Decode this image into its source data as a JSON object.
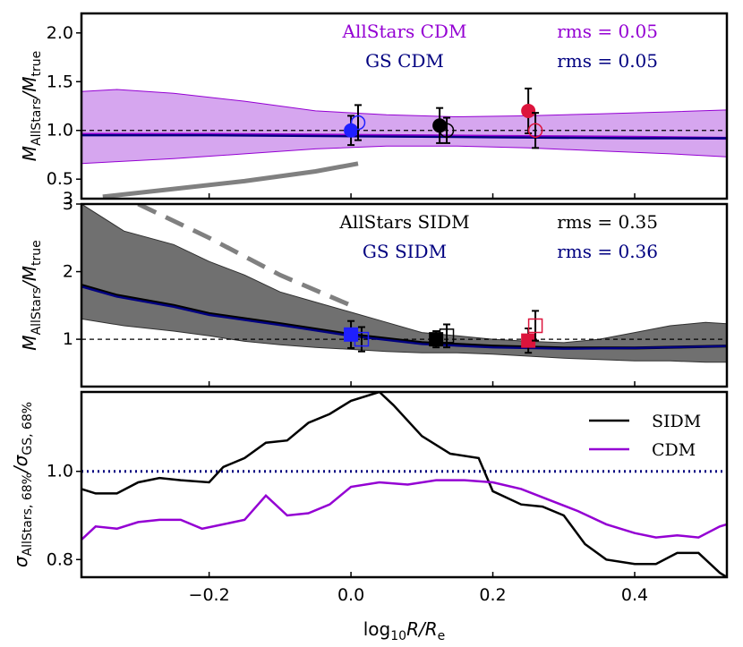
{
  "colors": {
    "cdm": "#9400d3",
    "cdm_band": "#d6a6ef",
    "gs": "#000080",
    "sidm": "#000000",
    "sidm_band": "#707070",
    "model_line": "#808080",
    "red": "#dc143c",
    "blue": "#1f1fff"
  },
  "chart_data": [
    {
      "id": "top",
      "type": "line",
      "ylabel_main": "M",
      "ylabel_sub1": "AllStars",
      "ylabel_mid": "/M",
      "ylabel_sub2": "true",
      "xlim": [
        -0.38,
        0.53
      ],
      "ylim": [
        0.3,
        2.2
      ],
      "yticks": [
        0.5,
        1.0,
        1.5,
        2.0
      ],
      "ytick_labels": [
        "0.5",
        "1.0",
        "1.5",
        "2.0"
      ],
      "ytick_extra_label": "3",
      "annotations": [
        {
          "text": "AllStars CDM",
          "color_key": "cdm"
        },
        {
          "text": "rms = 0.05",
          "color_key": "cdm"
        },
        {
          "text": "GS CDM",
          "color_key": "gs"
        },
        {
          "text": "rms = 0.05",
          "color_key": "gs"
        }
      ],
      "band": {
        "x": [
          -0.38,
          -0.33,
          -0.25,
          -0.15,
          -0.05,
          0.05,
          0.15,
          0.25,
          0.35,
          0.45,
          0.53
        ],
        "upper": [
          1.4,
          1.42,
          1.38,
          1.3,
          1.2,
          1.16,
          1.14,
          1.15,
          1.17,
          1.19,
          1.21
        ],
        "lower": [
          0.66,
          0.68,
          0.71,
          0.76,
          0.81,
          0.84,
          0.84,
          0.82,
          0.79,
          0.76,
          0.73
        ]
      },
      "series": [
        {
          "name": "AllStars CDM",
          "color_key": "cdm",
          "x": [
            -0.38,
            -0.2,
            0.0,
            0.2,
            0.4,
            0.53
          ],
          "y": [
            0.96,
            0.96,
            0.95,
            0.94,
            0.93,
            0.92
          ]
        },
        {
          "name": "GS CDM",
          "color_key": "gs",
          "x": [
            -0.38,
            -0.2,
            0.0,
            0.2,
            0.4,
            0.53
          ],
          "y": [
            0.95,
            0.95,
            0.94,
            0.93,
            0.92,
            0.92
          ]
        }
      ],
      "model_curve": {
        "x": [
          -0.35,
          -0.25,
          -0.15,
          -0.05,
          0.01
        ],
        "y": [
          0.32,
          0.4,
          0.48,
          0.58,
          0.66
        ],
        "dashed": false
      },
      "reference_y": 1.0,
      "points": [
        {
          "x": 0.0,
          "y": 1.0,
          "err": 0.15,
          "color_key": "blue",
          "marker": "circle",
          "filled": true
        },
        {
          "x": 0.01,
          "y": 1.08,
          "err": 0.18,
          "color_key": "blue",
          "marker": "circle",
          "filled": false
        },
        {
          "x": 0.125,
          "y": 1.05,
          "err": 0.18,
          "color_key": "sidm",
          "marker": "circle",
          "filled": true
        },
        {
          "x": 0.135,
          "y": 1.0,
          "err": 0.13,
          "color_key": "sidm",
          "marker": "circle",
          "filled": false
        },
        {
          "x": 0.25,
          "y": 1.2,
          "err": 0.23,
          "color_key": "red",
          "marker": "circle",
          "filled": true
        },
        {
          "x": 0.26,
          "y": 1.0,
          "err": 0.18,
          "color_key": "red",
          "marker": "circle",
          "filled": false
        }
      ]
    },
    {
      "id": "middle",
      "type": "line",
      "ylabel_main": "M",
      "ylabel_sub1": "AllStars",
      "ylabel_mid": "/M",
      "ylabel_sub2": "true",
      "xlim": [
        -0.38,
        0.53
      ],
      "ylim": [
        0.3,
        3.0
      ],
      "yticks": [
        1,
        2,
        3
      ],
      "ytick_labels": [
        "1",
        "2",
        "3"
      ],
      "annotations": [
        {
          "text": "AllStars SIDM",
          "color_key": "sidm"
        },
        {
          "text": "rms = 0.35",
          "color_key": "sidm"
        },
        {
          "text": "GS SIDM",
          "color_key": "gs"
        },
        {
          "text": "rms = 0.36",
          "color_key": "gs"
        }
      ],
      "band": {
        "x": [
          -0.38,
          -0.32,
          -0.25,
          -0.2,
          -0.15,
          -0.1,
          -0.05,
          0.0,
          0.05,
          0.1,
          0.15,
          0.2,
          0.25,
          0.3,
          0.35,
          0.4,
          0.45,
          0.5,
          0.53
        ],
        "upper": [
          3.0,
          2.6,
          2.4,
          2.15,
          1.95,
          1.7,
          1.55,
          1.4,
          1.25,
          1.1,
          1.05,
          1.0,
          0.97,
          0.95,
          1.0,
          1.1,
          1.2,
          1.25,
          1.23
        ],
        "lower": [
          1.3,
          1.2,
          1.12,
          1.05,
          0.97,
          0.92,
          0.88,
          0.85,
          0.82,
          0.8,
          0.8,
          0.78,
          0.75,
          0.72,
          0.7,
          0.68,
          0.68,
          0.66,
          0.66
        ]
      },
      "series": [
        {
          "name": "AllStars SIDM",
          "color_key": "sidm",
          "x": [
            -0.38,
            -0.33,
            -0.25,
            -0.2,
            -0.1,
            0.0,
            0.1,
            0.2,
            0.3,
            0.4,
            0.53
          ],
          "y": [
            1.8,
            1.65,
            1.5,
            1.38,
            1.23,
            1.07,
            0.95,
            0.9,
            0.87,
            0.87,
            0.9
          ]
        },
        {
          "name": "GS SIDM",
          "color_key": "gs",
          "x": [
            -0.38,
            -0.33,
            -0.25,
            -0.2,
            -0.1,
            0.0,
            0.1,
            0.2,
            0.3,
            0.4,
            0.53
          ],
          "y": [
            1.78,
            1.63,
            1.48,
            1.36,
            1.21,
            1.05,
            0.93,
            0.88,
            0.86,
            0.87,
            0.9
          ]
        }
      ],
      "model_curve": {
        "x": [
          -0.3,
          -0.2,
          -0.1,
          0.0
        ],
        "y": [
          3.0,
          2.5,
          1.95,
          1.5
        ],
        "dashed": true
      },
      "reference_y": 1.0,
      "points": [
        {
          "x": 0.0,
          "y": 1.07,
          "err": 0.2,
          "color_key": "blue",
          "marker": "square",
          "filled": true
        },
        {
          "x": 0.015,
          "y": 1.0,
          "err": 0.18,
          "color_key": "blue",
          "marker": "square",
          "filled": false
        },
        {
          "x": 0.12,
          "y": 1.0,
          "err": 0.12,
          "color_key": "sidm",
          "marker": "square",
          "filled": true
        },
        {
          "x": 0.135,
          "y": 1.05,
          "err": 0.17,
          "color_key": "sidm",
          "marker": "square",
          "filled": false
        },
        {
          "x": 0.25,
          "y": 0.98,
          "err": 0.18,
          "color_key": "red",
          "marker": "square",
          "filled": true
        },
        {
          "x": 0.26,
          "y": 1.2,
          "err": 0.22,
          "color_key": "red",
          "marker": "square",
          "filled": false
        }
      ]
    },
    {
      "id": "bottom",
      "type": "line",
      "xlabel": "log10 R/Re",
      "xlabel_main": "log",
      "xlabel_sub": "10",
      "xlabel_rest": "R/R",
      "xlabel_sub2": "e",
      "ylabel_main": "σ",
      "ylabel_sub1": "AllStars, 68%",
      "ylabel_mid": "/σ",
      "ylabel_sub2": "GS, 68%",
      "xlim": [
        -0.38,
        0.53
      ],
      "ylim": [
        0.76,
        1.18
      ],
      "xticks": [
        -0.2,
        0.0,
        0.2,
        0.4
      ],
      "xtick_labels": [
        "−0.2",
        "0.0",
        "0.2",
        "0.4"
      ],
      "yticks": [
        0.8,
        1.0
      ],
      "ytick_labels": [
        "0.8",
        "1.0"
      ],
      "reference_y": 1.0,
      "legend": [
        {
          "label": "SIDM",
          "color_key": "sidm"
        },
        {
          "label": "CDM",
          "color_key": "cdm"
        }
      ],
      "series": [
        {
          "name": "SIDM",
          "color_key": "sidm",
          "x": [
            -0.38,
            -0.36,
            -0.33,
            -0.3,
            -0.27,
            -0.24,
            -0.2,
            -0.18,
            -0.15,
            -0.12,
            -0.09,
            -0.06,
            -0.03,
            0.0,
            0.04,
            0.06,
            0.1,
            0.14,
            0.18,
            0.2,
            0.24,
            0.27,
            0.3,
            0.33,
            0.36,
            0.4,
            0.43,
            0.46,
            0.49,
            0.52,
            0.53
          ],
          "y": [
            0.96,
            0.95,
            0.95,
            0.975,
            0.985,
            0.98,
            0.975,
            1.01,
            1.03,
            1.065,
            1.07,
            1.11,
            1.13,
            1.16,
            1.18,
            1.15,
            1.08,
            1.04,
            1.03,
            0.955,
            0.925,
            0.92,
            0.9,
            0.835,
            0.8,
            0.79,
            0.79,
            0.815,
            0.815,
            0.77,
            0.76
          ]
        },
        {
          "name": "CDM",
          "color_key": "cdm",
          "x": [
            -0.38,
            -0.36,
            -0.33,
            -0.3,
            -0.27,
            -0.24,
            -0.21,
            -0.18,
            -0.15,
            -0.12,
            -0.09,
            -0.06,
            -0.03,
            0.0,
            0.04,
            0.08,
            0.12,
            0.16,
            0.2,
            0.24,
            0.28,
            0.32,
            0.36,
            0.4,
            0.43,
            0.46,
            0.49,
            0.52,
            0.53
          ],
          "y": [
            0.845,
            0.875,
            0.87,
            0.885,
            0.89,
            0.89,
            0.87,
            0.88,
            0.89,
            0.945,
            0.9,
            0.905,
            0.925,
            0.965,
            0.975,
            0.97,
            0.98,
            0.98,
            0.975,
            0.96,
            0.935,
            0.91,
            0.88,
            0.86,
            0.85,
            0.855,
            0.85,
            0.875,
            0.88
          ]
        }
      ]
    }
  ]
}
